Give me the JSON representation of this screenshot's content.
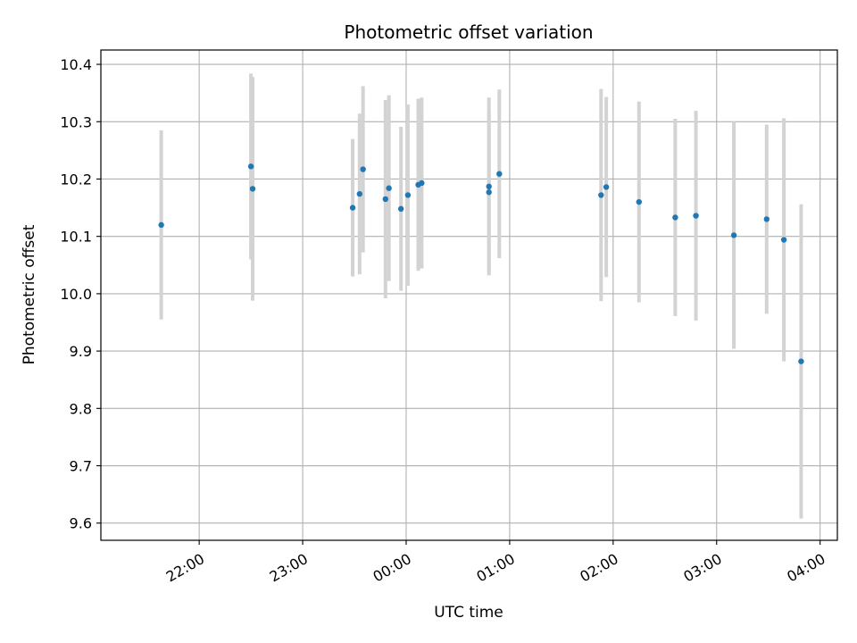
{
  "chart_data": {
    "type": "scatter",
    "title": "Photometric offset variation",
    "xlabel": "UTC time",
    "ylabel": "Photometric offset",
    "x_ticks": [
      "22:00",
      "23:00",
      "00:00",
      "01:00",
      "02:00",
      "03:00",
      "04:00"
    ],
    "y_ticks": [
      "9.6",
      "9.7",
      "9.8",
      "9.9",
      "10.0",
      "10.1",
      "10.2",
      "10.3",
      "10.4"
    ],
    "xlim": [
      "21:03",
      "04:10"
    ],
    "ylim": [
      9.57,
      10.425
    ],
    "grid": true,
    "colors": {
      "points": "#1f77b4",
      "errorbars": "#d3d3d3",
      "grid": "#b0b0b0"
    },
    "points": [
      {
        "x": "21:38",
        "y": 10.12,
        "err": 0.165
      },
      {
        "x": "22:30",
        "y": 10.222,
        "err": 0.162
      },
      {
        "x": "22:31",
        "y": 10.183,
        "err": 0.195
      },
      {
        "x": "23:29",
        "y": 10.15,
        "err": 0.12
      },
      {
        "x": "23:33",
        "y": 10.174,
        "err": 0.14
      },
      {
        "x": "23:35",
        "y": 10.217,
        "err": 0.145
      },
      {
        "x": "23:48",
        "y": 10.165,
        "err": 0.173
      },
      {
        "x": "23:50",
        "y": 10.184,
        "err": 0.162
      },
      {
        "x": "23:57",
        "y": 10.148,
        "err": 0.143
      },
      {
        "x": "00:01",
        "y": 10.172,
        "err": 0.158
      },
      {
        "x": "00:07",
        "y": 10.19,
        "err": 0.15
      },
      {
        "x": "00:09",
        "y": 10.193,
        "err": 0.149
      },
      {
        "x": "00:48",
        "y": 10.187,
        "err": 0.155
      },
      {
        "x": "00:48",
        "y": 10.177,
        "err": 0.14
      },
      {
        "x": "00:54",
        "y": 10.209,
        "err": 0.147
      },
      {
        "x": "01:53",
        "y": 10.172,
        "err": 0.185
      },
      {
        "x": "01:56",
        "y": 10.186,
        "err": 0.157
      },
      {
        "x": "02:15",
        "y": 10.16,
        "err": 0.175
      },
      {
        "x": "02:36",
        "y": 10.133,
        "err": 0.172
      },
      {
        "x": "02:48",
        "y": 10.136,
        "err": 0.183
      },
      {
        "x": "03:10",
        "y": 10.102,
        "err": 0.198
      },
      {
        "x": "03:29",
        "y": 10.13,
        "err": 0.165
      },
      {
        "x": "03:39",
        "y": 10.094,
        "err": 0.212
      },
      {
        "x": "03:49",
        "y": 9.882,
        "err": 0.274
      }
    ]
  }
}
